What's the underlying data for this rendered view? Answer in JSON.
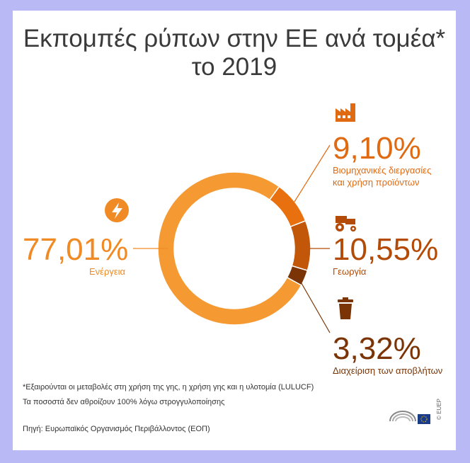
{
  "title": "Εκπομπές ρύπων στην ΕΕ ανά τομέα* το 2019",
  "chart_data": {
    "type": "pie",
    "title": "Εκπομπές ρύπων στην ΕΕ ανά τομέα* το 2019",
    "donut": true,
    "categories": [
      "Ενέργεια",
      "Βιομηχανικές διεργασίες και χρήση προϊόντων",
      "Γεωργία",
      "Διαχείριση των αποβλήτων"
    ],
    "values": [
      77.01,
      9.1,
      10.55,
      3.32
    ],
    "value_labels": [
      "77,01%",
      "9,10%",
      "10,55%",
      "3,32%"
    ],
    "colors": [
      "#f59a32",
      "#e8700f",
      "#c35709",
      "#7a3405"
    ]
  },
  "labels": {
    "energy": {
      "pct": "77,01%",
      "name": "Ενέργεια",
      "icon": "lightning-icon"
    },
    "industry": {
      "pct": "9,10%",
      "name_line1": "Βιομηχανικές διεργασίες",
      "name_line2": "και χρήση προϊόντων",
      "icon": "factory-icon"
    },
    "agriculture": {
      "pct": "10,55%",
      "name": "Γεωργία",
      "icon": "tractor-icon"
    },
    "waste": {
      "pct": "3,32%",
      "name": "Διαχείριση των αποβλήτων",
      "icon": "trash-icon"
    }
  },
  "footnotes": {
    "note1": "*Εξαιρούνται οι μεταβολές στη χρήση της γης, η χρήση γης και η υλοτομία (LULUCF)",
    "note2": "Τα ποσοστά δεν αθροίζουν 100% λόγω στρογγυλοποίησης",
    "source": "Πηγή: Ευρωπαϊκός Οργανισμός Περιβάλλοντος (ΕΟΠ)",
    "copyright": "© EUEP",
    "logo": "european-parliament-logo"
  }
}
